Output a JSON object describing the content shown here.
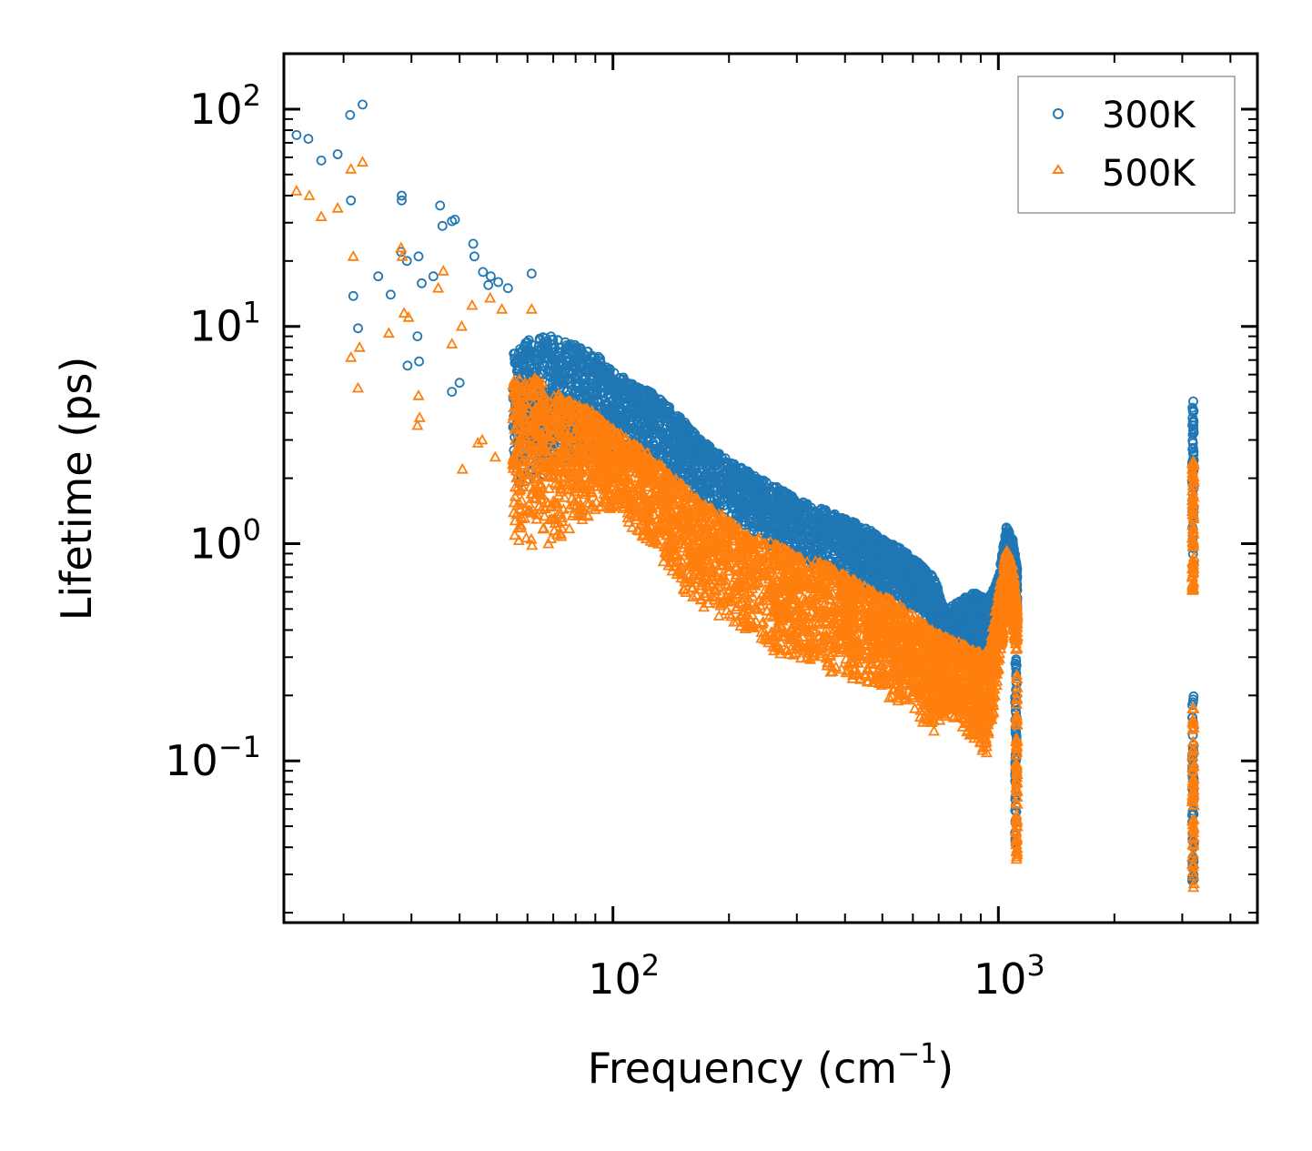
{
  "chart_data": {
    "type": "scatter",
    "title": "",
    "xlabel": "Frequency (cm",
    "xlabel_sup": "−1",
    "xlabel_end": ")",
    "ylabel": "Lifetime (ps)",
    "xscale": "log",
    "yscale": "log",
    "xlim": [
      14,
      4700
    ],
    "ylim": [
      0.018,
      180
    ],
    "x_ticks": [
      {
        "value": 100,
        "base": "10",
        "exp": "2"
      },
      {
        "value": 1000,
        "base": "10",
        "exp": "3"
      }
    ],
    "y_ticks": [
      {
        "value": 0.1,
        "base": "10",
        "exp": "−1"
      },
      {
        "value": 1,
        "base": "10",
        "exp": "0"
      },
      {
        "value": 10,
        "base": "10",
        "exp": "1"
      },
      {
        "value": 100,
        "base": "10",
        "exp": "2"
      }
    ],
    "legend_position": "top-right",
    "series": [
      {
        "name": "300K",
        "color": "#1f77b4",
        "marker": "circle",
        "points": [
          [
            15.1,
            76
          ],
          [
            16.2,
            73
          ],
          [
            17.5,
            58
          ],
          [
            19.3,
            62
          ],
          [
            20.8,
            94
          ],
          [
            22.4,
            105
          ],
          [
            20.9,
            38
          ],
          [
            24.6,
            17
          ],
          [
            26.5,
            14
          ],
          [
            21.2,
            13.8
          ],
          [
            21.8,
            9.8
          ],
          [
            28.3,
            40
          ],
          [
            28.3,
            38
          ],
          [
            28.2,
            22
          ],
          [
            29.2,
            20
          ],
          [
            31.3,
            21
          ],
          [
            31.9,
            15.8
          ],
          [
            34.2,
            17
          ],
          [
            35.6,
            36
          ],
          [
            36.1,
            29
          ],
          [
            38.9,
            31
          ],
          [
            38.2,
            30.5
          ],
          [
            43.4,
            24
          ],
          [
            43.7,
            21
          ],
          [
            46.0,
            17.8
          ],
          [
            48.2,
            17
          ],
          [
            50.4,
            16
          ],
          [
            47.5,
            15.5
          ],
          [
            53.4,
            15
          ],
          [
            61.5,
            17.5
          ],
          [
            31.1,
            9
          ],
          [
            29.3,
            6.6
          ],
          [
            31.4,
            6.9
          ],
          [
            38.2,
            5
          ],
          [
            40,
            5.5
          ]
        ],
        "bands": [
          [
            55,
            1.8,
            7.5
          ],
          [
            62,
            1.9,
            9
          ],
          [
            70,
            2.1,
            9
          ],
          [
            80,
            2.3,
            8.5
          ],
          [
            90,
            2.4,
            7.5
          ],
          [
            100,
            2.4,
            6.2
          ],
          [
            115,
            2.4,
            5.4
          ],
          [
            130,
            2.3,
            4.8
          ],
          [
            150,
            1.8,
            3.8
          ],
          [
            170,
            1.5,
            3.0
          ],
          [
            200,
            1.3,
            2.4
          ],
          [
            230,
            1.05,
            2.1
          ],
          [
            270,
            0.92,
            1.8
          ],
          [
            300,
            0.85,
            1.6
          ],
          [
            350,
            0.72,
            1.45
          ],
          [
            400,
            0.65,
            1.3
          ],
          [
            450,
            0.6,
            1.2
          ],
          [
            500,
            0.56,
            1.05
          ],
          [
            560,
            0.52,
            0.95
          ],
          [
            620,
            0.48,
            0.82
          ],
          [
            680,
            0.42,
            0.7
          ],
          [
            730,
            0.28,
            0.5
          ],
          [
            800,
            0.3,
            0.55
          ],
          [
            870,
            0.32,
            0.6
          ],
          [
            940,
            0.25,
            0.55
          ],
          [
            1000,
            0.35,
            0.7
          ],
          [
            1050,
            0.55,
            1.2
          ],
          [
            1090,
            0.5,
            1.05
          ],
          [
            1120,
            0.45,
            0.75
          ]
        ],
        "columns": [
          [
            1110,
            0.04,
            0.3
          ],
          [
            3200,
            0.028,
            0.2
          ],
          [
            3200,
            0.72,
            4.8
          ]
        ]
      },
      {
        "name": "500K",
        "color": "#ff7f0e",
        "marker": "triangle",
        "points": [
          [
            15.1,
            42
          ],
          [
            16.3,
            40
          ],
          [
            17.5,
            32
          ],
          [
            19.3,
            35
          ],
          [
            20.9,
            53
          ],
          [
            22.4,
            57
          ],
          [
            21.2,
            21
          ],
          [
            20.9,
            7.2
          ],
          [
            22,
            8
          ],
          [
            21.8,
            5.2
          ],
          [
            26.2,
            9.3
          ],
          [
            28.2,
            23
          ],
          [
            28.4,
            21
          ],
          [
            28.7,
            11.5
          ],
          [
            29.5,
            11
          ],
          [
            31.3,
            4.8
          ],
          [
            31.5,
            3.8
          ],
          [
            31.1,
            3.5
          ],
          [
            35.2,
            15
          ],
          [
            36.3,
            18
          ],
          [
            40.5,
            10
          ],
          [
            43.1,
            12.5
          ],
          [
            48,
            13.5
          ],
          [
            51.5,
            12
          ],
          [
            61.5,
            12
          ],
          [
            38.2,
            8.3
          ],
          [
            40.7,
            2.2
          ],
          [
            45.8,
            3
          ],
          [
            44.6,
            2.9
          ],
          [
            49.5,
            2.5
          ]
        ],
        "bands": [
          [
            55,
            0.95,
            6
          ],
          [
            62,
            0.95,
            6
          ],
          [
            70,
            1.0,
            5
          ],
          [
            80,
            1.2,
            4.6
          ],
          [
            90,
            1.4,
            4
          ],
          [
            100,
            1.45,
            3.4
          ],
          [
            115,
            1.1,
            2.9
          ],
          [
            130,
            0.9,
            2.4
          ],
          [
            150,
            0.62,
            1.9
          ],
          [
            170,
            0.5,
            1.55
          ],
          [
            200,
            0.42,
            1.3
          ],
          [
            230,
            0.38,
            1.1
          ],
          [
            270,
            0.3,
            0.98
          ],
          [
            300,
            0.28,
            0.88
          ],
          [
            350,
            0.26,
            0.82
          ],
          [
            400,
            0.24,
            0.72
          ],
          [
            450,
            0.22,
            0.65
          ],
          [
            500,
            0.2,
            0.58
          ],
          [
            560,
            0.18,
            0.52
          ],
          [
            620,
            0.16,
            0.45
          ],
          [
            680,
            0.13,
            0.4
          ],
          [
            730,
            0.16,
            0.38
          ],
          [
            800,
            0.14,
            0.35
          ],
          [
            870,
            0.12,
            0.32
          ],
          [
            940,
            0.1,
            0.32
          ],
          [
            1000,
            0.25,
            0.6
          ],
          [
            1050,
            0.45,
            0.95
          ],
          [
            1090,
            0.4,
            0.8
          ],
          [
            1120,
            0.3,
            0.5
          ]
        ],
        "columns": [
          [
            1115,
            0.035,
            0.25
          ],
          [
            3200,
            0.026,
            0.18
          ],
          [
            3200,
            0.6,
            2.4
          ]
        ]
      }
    ]
  }
}
